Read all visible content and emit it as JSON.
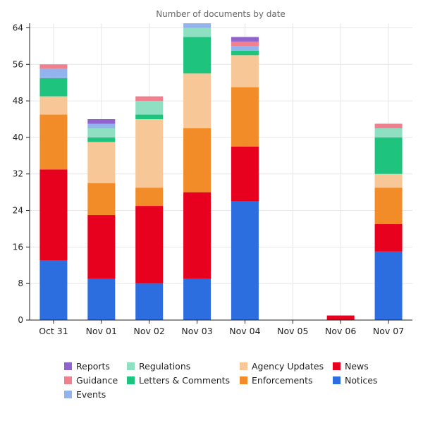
{
  "chart_data": {
    "type": "bar",
    "stacked": true,
    "title": "Number of documents by date",
    "xlabel": "",
    "ylabel": "",
    "ylim": [
      0,
      65
    ],
    "yticks": [
      0,
      8,
      16,
      24,
      32,
      40,
      48,
      56,
      64
    ],
    "grid": true,
    "legend_position": "bottom",
    "categories": [
      "Oct 31",
      "Nov 01",
      "Nov 02",
      "Nov 03",
      "Nov 04",
      "Nov 05",
      "Nov 06",
      "Nov 07"
    ],
    "series": [
      {
        "name": "Notices",
        "color": "#2c6ee0",
        "values": [
          13,
          9,
          8,
          9,
          26,
          0,
          0,
          15
        ]
      },
      {
        "name": "News",
        "color": "#e8001f",
        "values": [
          20,
          14,
          17,
          19,
          12,
          0,
          1,
          6
        ]
      },
      {
        "name": "Enforcements",
        "color": "#f28c28",
        "values": [
          12,
          7,
          4,
          14,
          13,
          0,
          0,
          8
        ]
      },
      {
        "name": "Agency Updates",
        "color": "#f8c797",
        "values": [
          4,
          9,
          15,
          12,
          7,
          0,
          0,
          3
        ]
      },
      {
        "name": "Letters & Comments",
        "color": "#1ec47e",
        "values": [
          4,
          1,
          1,
          8,
          1,
          0,
          0,
          8
        ]
      },
      {
        "name": "Regulations",
        "color": "#8fe0c2",
        "values": [
          0,
          2,
          3,
          2,
          0,
          0,
          0,
          2
        ]
      },
      {
        "name": "Events",
        "color": "#93b3ee",
        "values": [
          2,
          1,
          0,
          1,
          1,
          0,
          0,
          0
        ]
      },
      {
        "name": "Guidance",
        "color": "#f0808d",
        "values": [
          1,
          0,
          1,
          0,
          1,
          0,
          0,
          1
        ]
      },
      {
        "name": "Reports",
        "color": "#9063cd",
        "values": [
          0,
          1,
          0,
          0,
          1,
          0,
          0,
          0
        ]
      }
    ],
    "legend_order": [
      "Reports",
      "Regulations",
      "Agency Updates",
      "News",
      "Guidance",
      "Letters & Comments",
      "Enforcements",
      "Notices",
      "Events"
    ]
  }
}
